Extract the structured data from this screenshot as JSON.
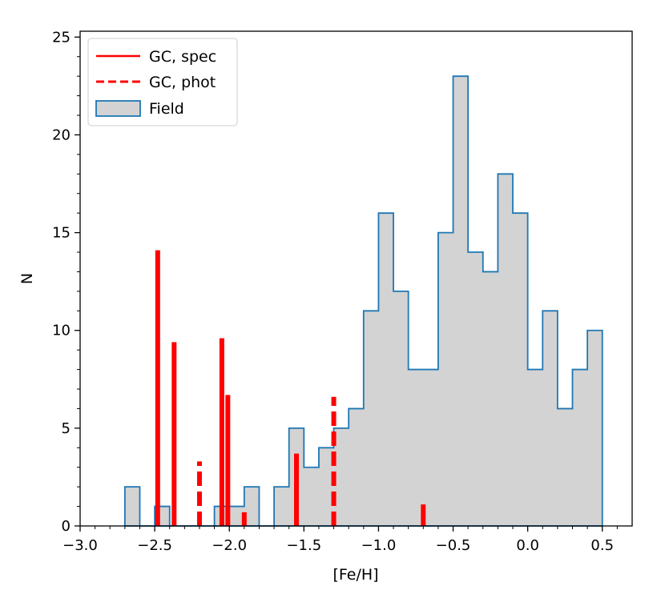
{
  "chart_data": {
    "type": "histogram",
    "title": "",
    "xlabel": "[Fe/H]",
    "ylabel": "N",
    "xlim": [
      -3.0,
      0.7
    ],
    "ylim": [
      0,
      25.3
    ],
    "xticks": [
      -3.0,
      -2.5,
      -2.0,
      -1.5,
      -1.0,
      -0.5,
      0.0,
      0.5
    ],
    "xtick_labels": [
      "−3.0",
      "−2.5",
      "−2.0",
      "−1.5",
      "−1.0",
      "−0.5",
      "0.0",
      "0.5"
    ],
    "yticks": [
      0,
      5,
      10,
      15,
      20,
      25
    ],
    "ytick_labels": [
      "0",
      "5",
      "10",
      "15",
      "20",
      "25"
    ],
    "legend_position": "top-left",
    "colors": {
      "gc": "#ff0000",
      "field_fill": "#d3d3d3",
      "field_edge": "#1f77b4"
    },
    "field": {
      "name": "Field",
      "bin_start": -2.7,
      "bin_width": 0.1,
      "counts": [
        2,
        0,
        1,
        0,
        0,
        0,
        1,
        1,
        2,
        0,
        2,
        5,
        3,
        4,
        5,
        6,
        11,
        16,
        12,
        8,
        8,
        15,
        23,
        14,
        13,
        18,
        16,
        8,
        11,
        6,
        8,
        10
      ]
    },
    "gc_spec": {
      "name": "GC, spec",
      "x": [
        -2.48,
        -2.37,
        -2.05,
        -2.01,
        -1.9,
        -1.55,
        -0.7
      ],
      "y": [
        14.1,
        9.4,
        9.6,
        6.7,
        0.7,
        3.7,
        1.1
      ]
    },
    "gc_phot": {
      "name": "GC, phot",
      "x": [
        -2.2,
        -1.3
      ],
      "y": [
        3.3,
        6.6
      ]
    }
  }
}
